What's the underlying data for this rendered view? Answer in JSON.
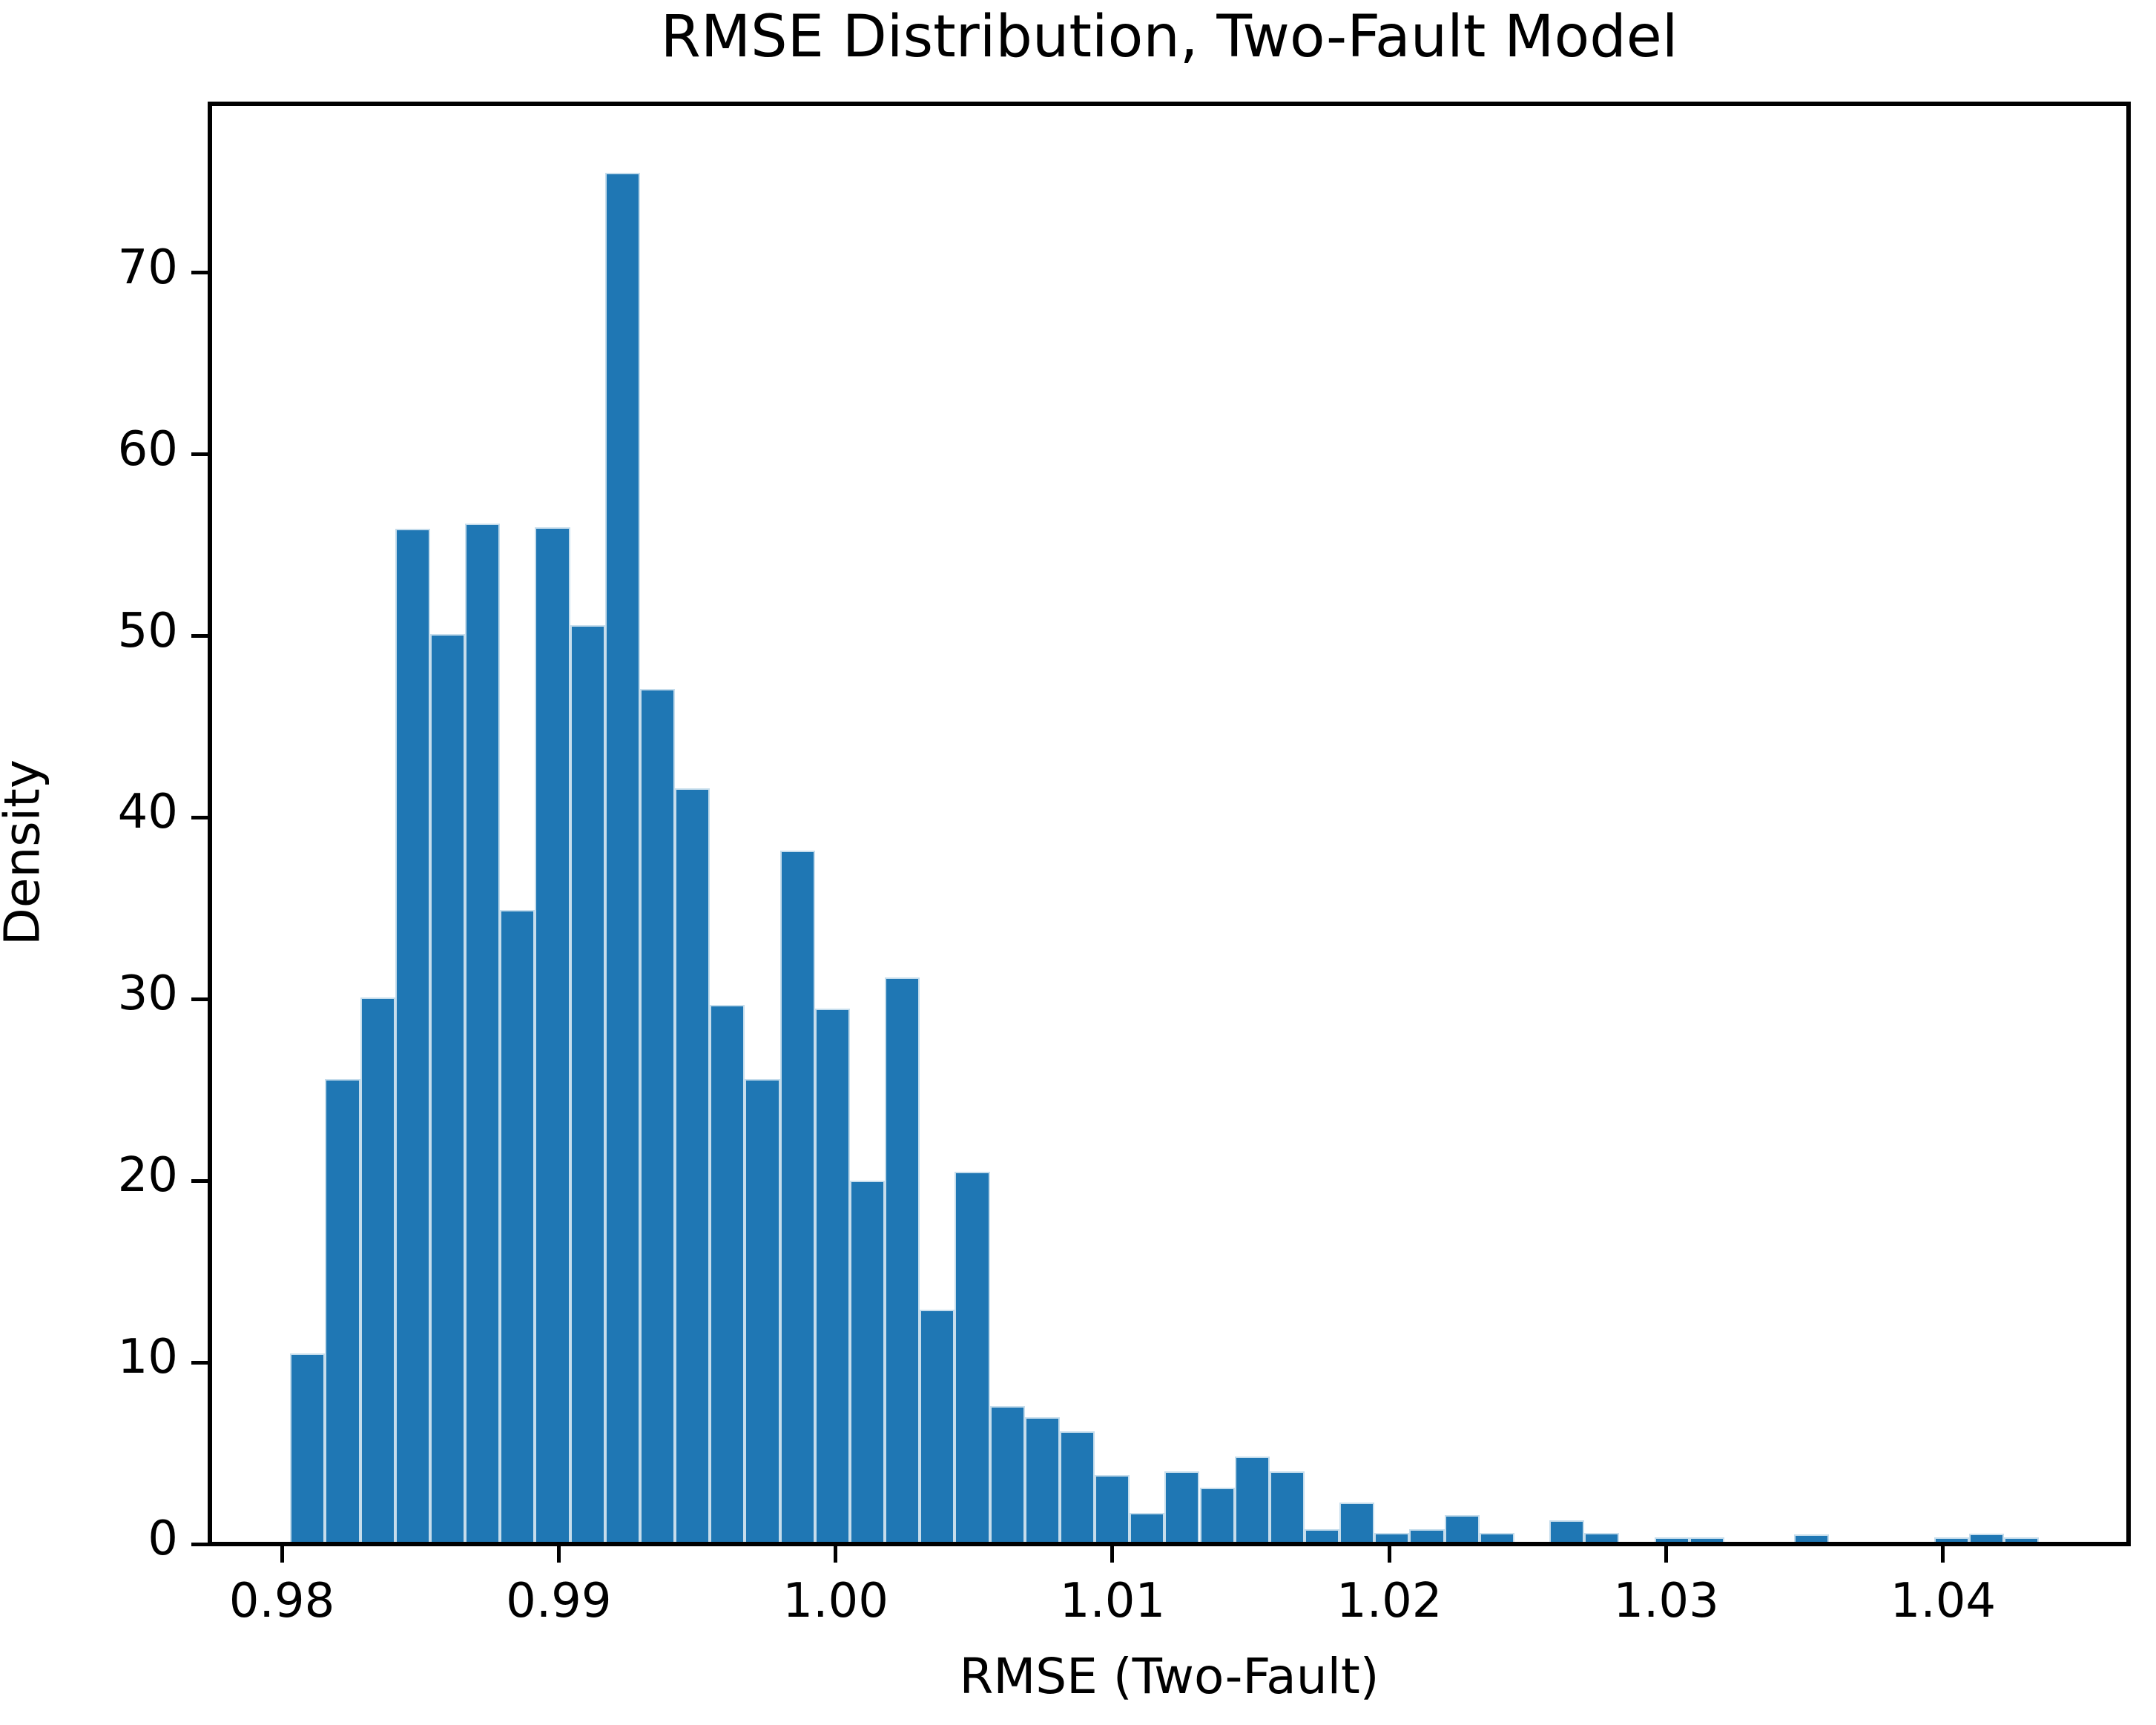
{
  "chart_data": {
    "type": "bar",
    "subtype": "histogram-density",
    "title": "RMSE Distribution, Two-Fault Model",
    "xlabel": "RMSE (Two-Fault)",
    "ylabel": "Density",
    "bar_color": "#1f77b4",
    "bar_edge_color": "rgba(255,255,255,0.75)",
    "axis_color": "#000000",
    "grid": "off",
    "legend": "none",
    "xlim": [
      0.9774,
      1.0467
    ],
    "ylim": [
      0,
      79.3
    ],
    "x_ticks": [
      {
        "value": 0.98,
        "label": "0.98"
      },
      {
        "value": 0.99,
        "label": "0.99"
      },
      {
        "value": 1.0,
        "label": "1.00"
      },
      {
        "value": 1.01,
        "label": "1.01"
      },
      {
        "value": 1.02,
        "label": "1.02"
      },
      {
        "value": 1.03,
        "label": "1.03"
      },
      {
        "value": 1.04,
        "label": "1.04"
      }
    ],
    "y_ticks": [
      {
        "value": 0,
        "label": "0"
      },
      {
        "value": 10,
        "label": "10"
      },
      {
        "value": 20,
        "label": "20"
      },
      {
        "value": 30,
        "label": "30"
      },
      {
        "value": 40,
        "label": "40"
      },
      {
        "value": 50,
        "label": "50"
      },
      {
        "value": 60,
        "label": "60"
      },
      {
        "value": 70,
        "label": "70"
      }
    ],
    "bins": {
      "start": 0.9803,
      "width": 0.0012634,
      "count": 50,
      "densities": [
        10.5,
        25.6,
        30.1,
        55.9,
        50.1,
        56.2,
        34.9,
        56.0,
        50.6,
        75.5,
        47.1,
        41.6,
        29.7,
        25.6,
        38.2,
        29.5,
        20.0,
        31.2,
        12.9,
        20.5,
        7.6,
        7.0,
        6.2,
        3.8,
        1.7,
        4.0,
        3.1,
        4.8,
        4.0,
        0.8,
        2.3,
        0.6,
        0.8,
        1.6,
        0.6,
        0.0,
        1.3,
        0.6,
        0.0,
        0.35,
        0.35,
        0.0,
        0.0,
        0.55,
        0.0,
        0.0,
        0.0,
        0.38,
        0.56,
        0.38
      ]
    }
  }
}
